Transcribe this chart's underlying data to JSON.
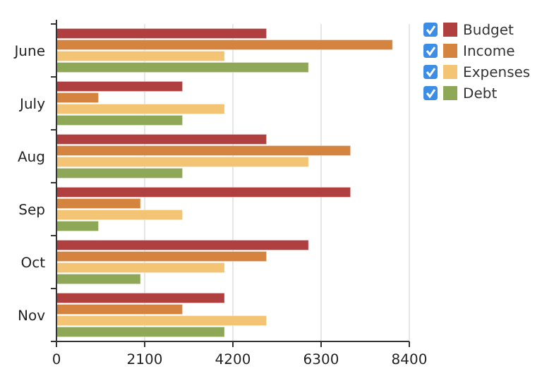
{
  "chart_data": {
    "type": "bar",
    "orientation": "horizontal",
    "categories": [
      "June",
      "July",
      "Aug",
      "Sep",
      "Oct",
      "Nov"
    ],
    "series": [
      {
        "name": "Budget",
        "color": "#b03f3f",
        "values": [
          5000,
          3000,
          5000,
          7000,
          6000,
          4000
        ]
      },
      {
        "name": "Income",
        "color": "#d4843f",
        "values": [
          8000,
          1000,
          7000,
          2000,
          5000,
          3000
        ]
      },
      {
        "name": "Expenses",
        "color": "#f2c474",
        "values": [
          4000,
          4000,
          6000,
          3000,
          4000,
          5000
        ]
      },
      {
        "name": "Debt",
        "color": "#8fa857",
        "values": [
          6000,
          3000,
          3000,
          1000,
          2000,
          4000
        ]
      }
    ],
    "xlim": [
      0,
      8400
    ],
    "xticks": [
      0,
      2100,
      4200,
      6300,
      8400
    ],
    "grid": "x",
    "legend": "top right"
  }
}
